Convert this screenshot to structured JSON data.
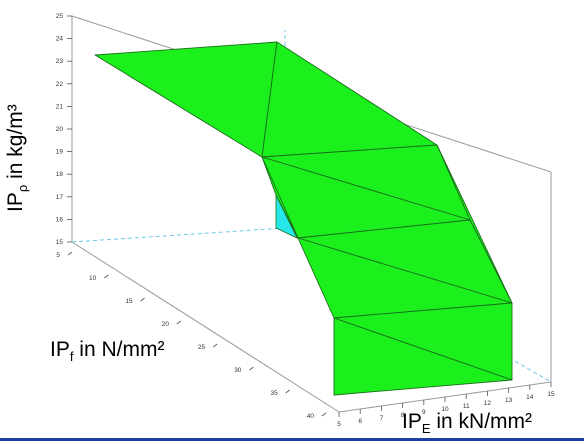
{
  "chart_data": {
    "type": "surface3d",
    "axes": {
      "vertical": {
        "label_main": "IP",
        "label_sub": "ρ",
        "label_tail": " in kg/m³",
        "ticks": [
          15,
          16,
          17,
          18,
          19,
          20,
          21,
          22,
          23,
          24,
          25
        ],
        "range": [
          15,
          25
        ]
      },
      "depth": {
        "label_main": "IP",
        "label_sub": "f",
        "label_tail": " in N/mm²",
        "ticks": [
          5,
          10,
          15,
          20,
          25,
          30,
          35,
          40
        ],
        "range": [
          5,
          40
        ]
      },
      "horizontal": {
        "label_main": "IP",
        "label_sub": "E",
        "label_tail": " in kN/mm²",
        "ticks": [
          5,
          6,
          7,
          8,
          9,
          10,
          11,
          12,
          13,
          14,
          15
        ],
        "range": [
          5,
          15
        ]
      }
    },
    "surface_color": "#1cf01c",
    "hidden_face_color": "#27e8e8",
    "edge_color": "#1a6e1a",
    "box_color": "#9a9a9a",
    "hidden_box_color": "#6fc8e8"
  }
}
